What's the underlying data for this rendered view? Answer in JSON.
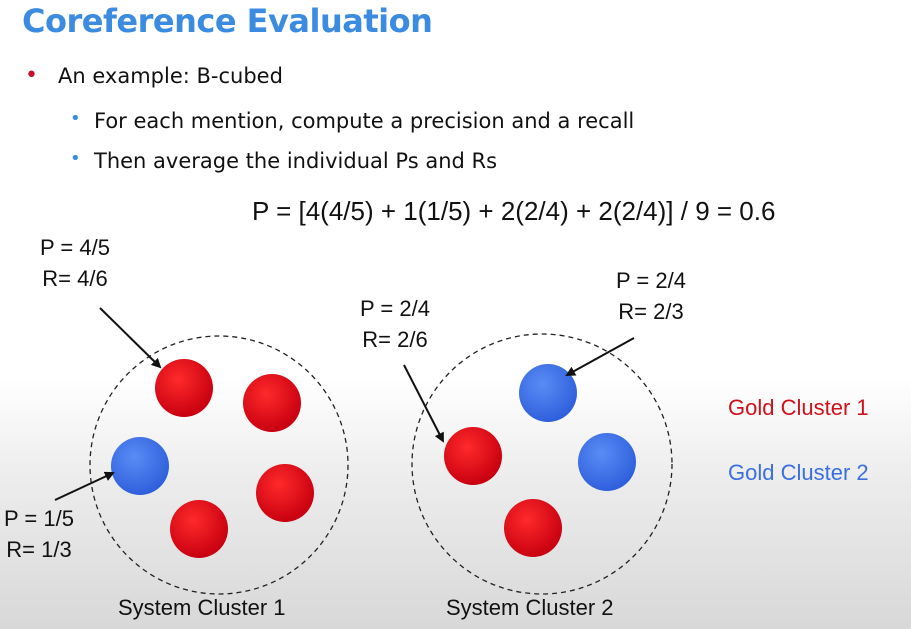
{
  "title": "Coreference Evaluation",
  "bullets": {
    "main": "An example: B-cubed",
    "sub": [
      "For each mention, compute a precision and a recall",
      "Then average the individual Ps and Rs"
    ]
  },
  "formula": "P = [4(4/5) + 1(1/5) + 2(2/4) + 2(2/4)] / 9 = 0.6",
  "annotations": {
    "red_c1": {
      "p": "P = 4/5",
      "r": "R= 4/6"
    },
    "blue_c1": {
      "p": "P = 1/5",
      "r": "R= 1/3"
    },
    "red_c2": {
      "p": "P = 2/4",
      "r": "R= 2/6"
    },
    "blue_c2": {
      "p": "P = 2/4",
      "r": "R= 2/3"
    }
  },
  "legend": {
    "gold1": "Gold Cluster 1",
    "gold2": "Gold Cluster 2"
  },
  "captions": {
    "system1": "System Cluster 1",
    "system2": "System Cluster 2"
  },
  "colors": {
    "title": "#3b8be0",
    "gold1": "#d0101a",
    "gold2": "#3a6fe0",
    "bullet_main": "#c8102e",
    "bullet_sub": "#3b8be0"
  }
}
